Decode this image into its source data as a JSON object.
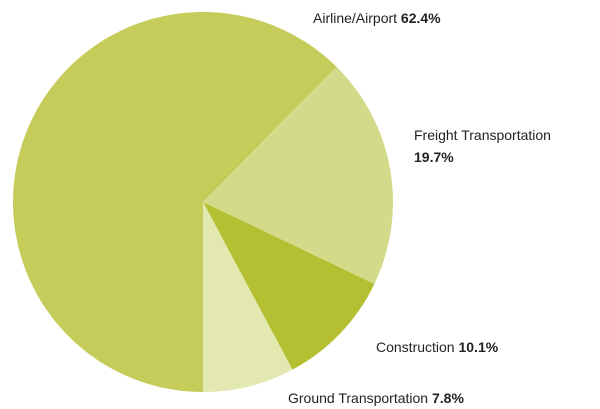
{
  "chart_data": {
    "type": "pie",
    "categories": [
      "Airline/Airport",
      "Freight Transportation",
      "Construction",
      "Ground Transportation"
    ],
    "values": [
      62.4,
      19.7,
      10.1,
      7.8
    ],
    "value_labels": [
      "62.4%",
      "19.7%",
      "10.1%",
      "7.8%"
    ],
    "colors": [
      "#c5cc5a",
      "#d3db8a",
      "#b4c031",
      "#e2e8b0"
    ]
  }
}
